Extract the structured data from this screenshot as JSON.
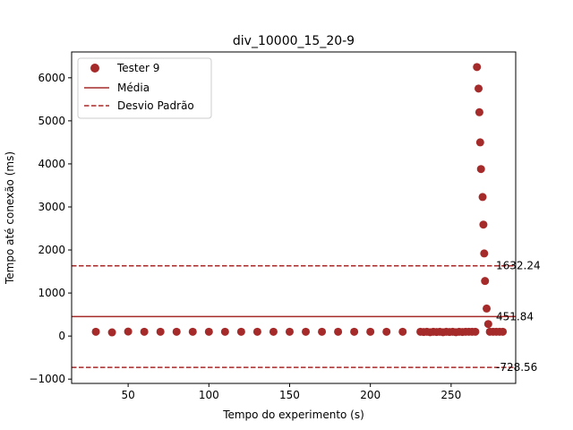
{
  "chart_data": {
    "type": "scatter",
    "title": "div_10000_15_20-9",
    "xlabel": "Tempo do experimento (s)",
    "ylabel": "Tempo até conexão (ms)",
    "xlim": [
      15,
      290
    ],
    "ylim": [
      -1100,
      6600
    ],
    "xticks": [
      50,
      100,
      150,
      200,
      250
    ],
    "yticks": [
      -1000,
      0,
      1000,
      2000,
      3000,
      4000,
      5000,
      6000
    ],
    "color": "#a52a2a",
    "grid": false,
    "legend_position": "top-left",
    "legend": {
      "scatter_label": "Tester 9",
      "mean_label": "Média",
      "std_label": "Desvio Padrão"
    },
    "series": [
      {
        "name": "Tester 9",
        "points": [
          [
            30,
            100
          ],
          [
            40,
            85
          ],
          [
            50,
            105
          ],
          [
            60,
            100
          ],
          [
            70,
            100
          ],
          [
            80,
            100
          ],
          [
            90,
            100
          ],
          [
            100,
            100
          ],
          [
            110,
            100
          ],
          [
            120,
            100
          ],
          [
            130,
            100
          ],
          [
            140,
            100
          ],
          [
            150,
            100
          ],
          [
            160,
            100
          ],
          [
            170,
            100
          ],
          [
            180,
            100
          ],
          [
            190,
            100
          ],
          [
            200,
            100
          ],
          [
            210,
            100
          ],
          [
            220,
            100
          ],
          [
            231,
            100
          ],
          [
            233,
            95
          ],
          [
            235,
            100
          ],
          [
            237,
            90
          ],
          [
            239,
            100
          ],
          [
            241,
            95
          ],
          [
            243,
            100
          ],
          [
            245,
            90
          ],
          [
            247,
            100
          ],
          [
            249,
            95
          ],
          [
            251,
            100
          ],
          [
            253,
            90
          ],
          [
            255,
            100
          ],
          [
            257,
            95
          ],
          [
            259,
            100
          ],
          [
            261,
            100
          ],
          [
            263,
            100
          ],
          [
            265,
            100
          ],
          [
            266,
            6250
          ],
          [
            267,
            5750
          ],
          [
            267.5,
            5200
          ],
          [
            268,
            4500
          ],
          [
            268.5,
            3880
          ],
          [
            269.5,
            3230
          ],
          [
            270,
            2590
          ],
          [
            270.5,
            1920
          ],
          [
            271,
            1280
          ],
          [
            272,
            640
          ],
          [
            273,
            280
          ],
          [
            274,
            100
          ],
          [
            276,
            100
          ],
          [
            278,
            100
          ],
          [
            280,
            100
          ],
          [
            282,
            100
          ]
        ]
      }
    ],
    "mean": 451.84,
    "mean_label": "451.84",
    "std_upper": 1632.24,
    "std_upper_label": "1632.24",
    "std_lower": -728.56,
    "std_lower_label": "-728.56"
  }
}
